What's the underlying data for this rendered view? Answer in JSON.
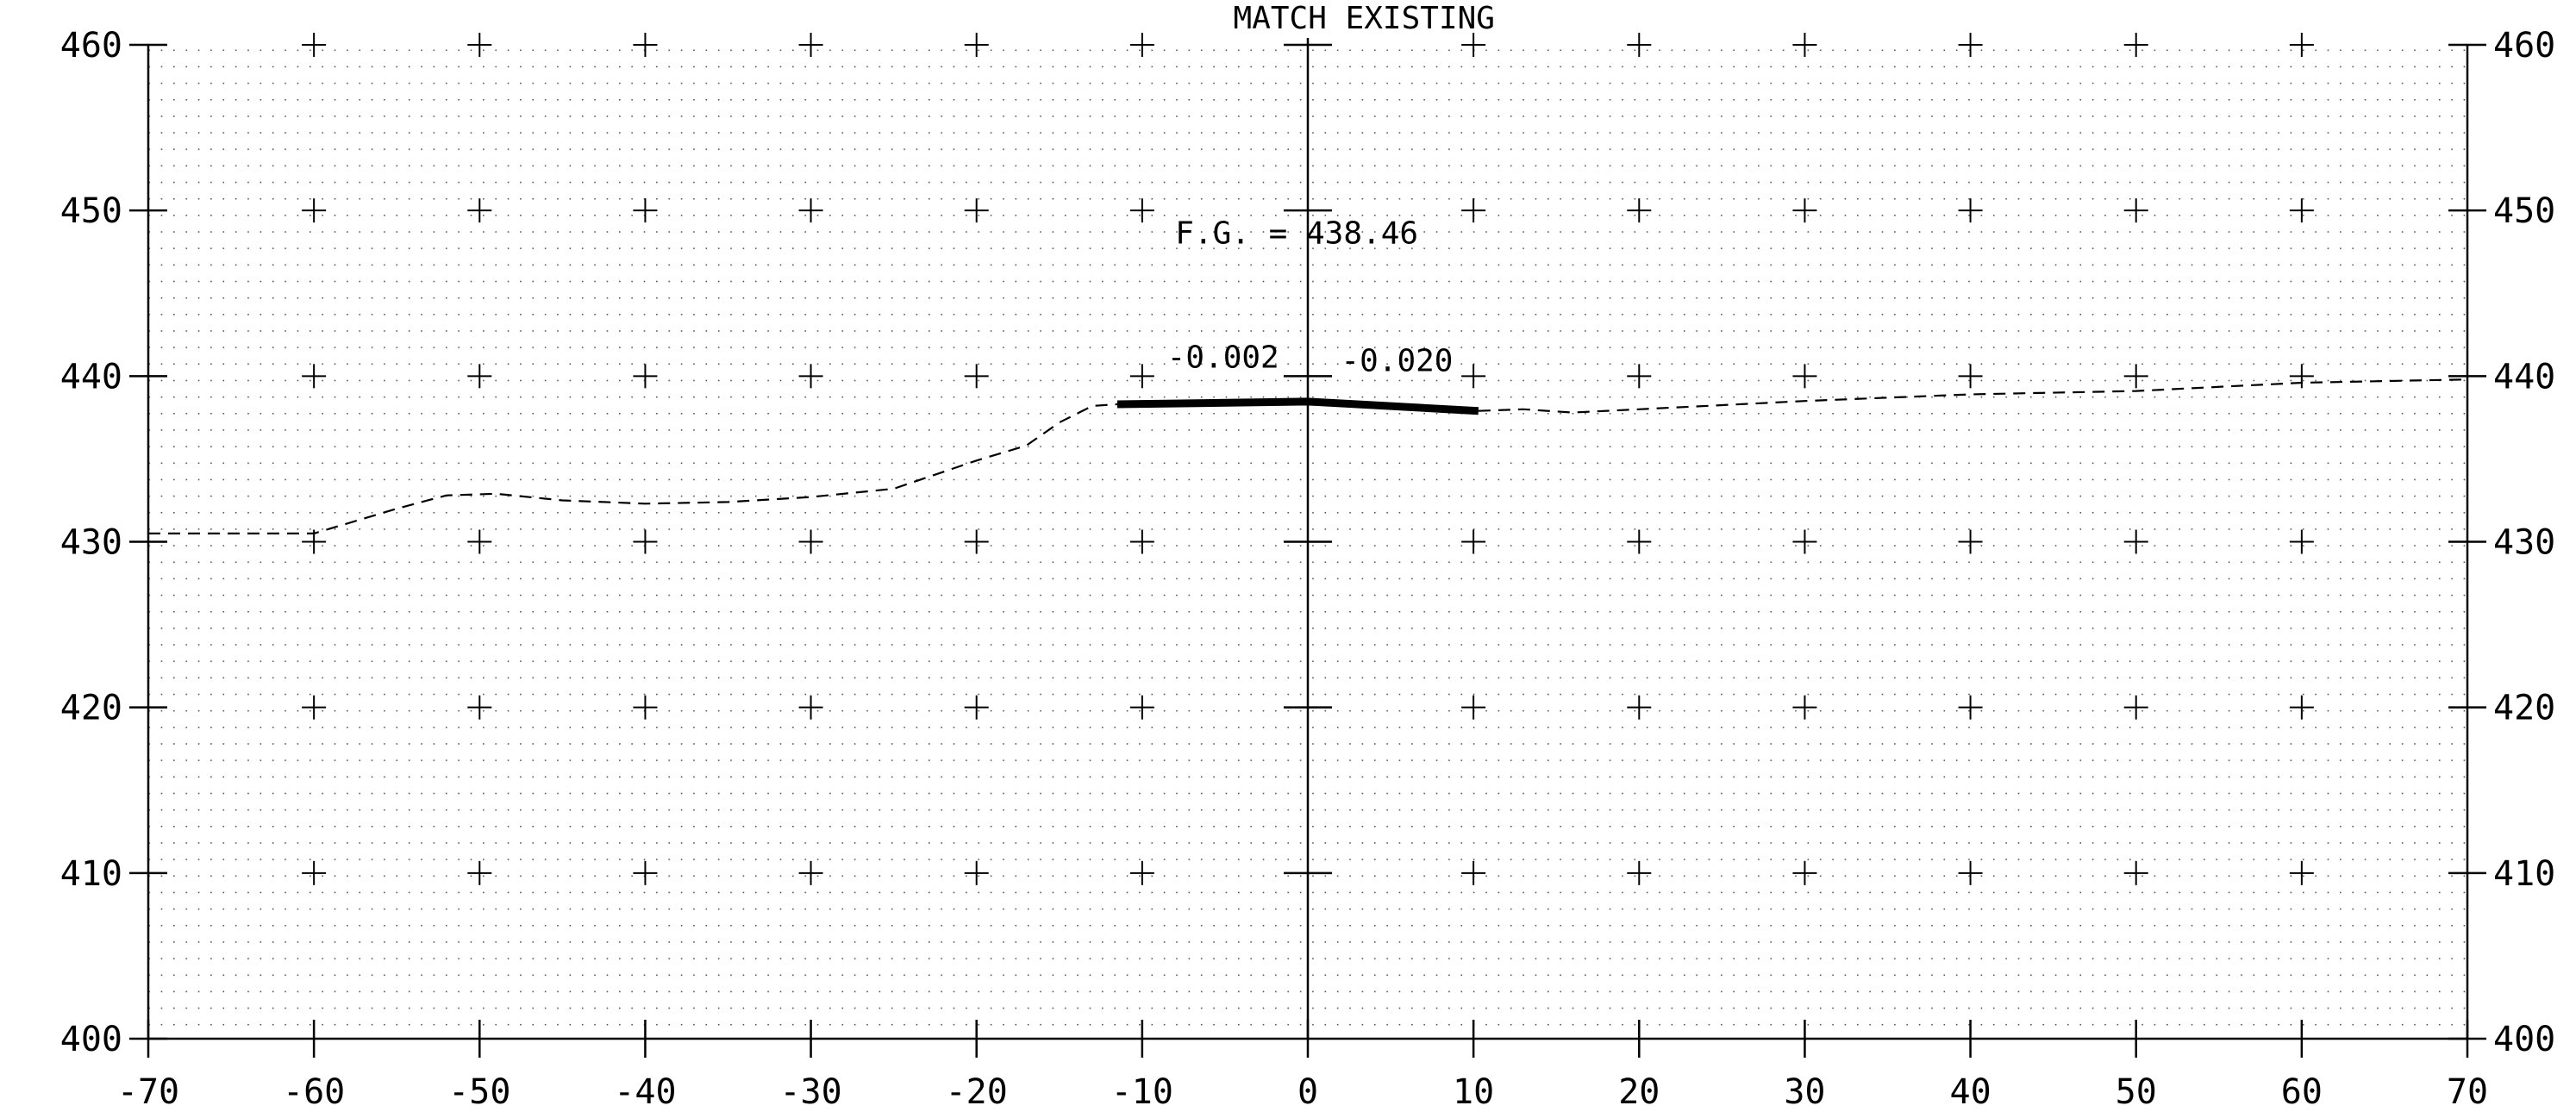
{
  "chart_data": {
    "type": "line",
    "title": "",
    "xlabel": "",
    "ylabel": "",
    "xlim": [
      -70,
      70
    ],
    "ylim": [
      400,
      460
    ],
    "x_ticks": [
      -70,
      -60,
      -50,
      -40,
      -30,
      -20,
      -10,
      0,
      10,
      20,
      30,
      40,
      50,
      60,
      70
    ],
    "x_tick_labels": [
      "-70",
      "-60",
      "-50",
      "-40",
      "-30",
      "-20",
      "-10",
      "0",
      "10",
      "20",
      "30",
      "40",
      "50",
      "60",
      "70"
    ],
    "y_ticks": [
      400,
      410,
      420,
      430,
      440,
      450,
      460
    ],
    "y_tick_labels": [
      "400",
      "410",
      "420",
      "430",
      "440",
      "450",
      "460"
    ],
    "grid": true,
    "series": [
      {
        "style": "dashed",
        "x": [
          -70,
          -60,
          -55,
          -52,
          -49,
          -45,
          -40,
          -35,
          -30,
          -25,
          -20,
          -17,
          -15,
          -13,
          -11.5
        ],
        "y": [
          430.5,
          430.5,
          432.0,
          432.8,
          432.9,
          432.5,
          432.3,
          432.4,
          432.7,
          433.2,
          434.9,
          435.8,
          437.2,
          438.2,
          438.3
        ]
      },
      {
        "style": "dashed",
        "x": [
          10.3,
          13,
          16,
          20,
          30,
          40,
          50,
          60,
          70
        ],
        "y": [
          437.9,
          438.0,
          437.8,
          438.0,
          438.5,
          438.9,
          439.1,
          439.6,
          439.8
        ]
      },
      {
        "style": "solid-heavy",
        "x": [
          -11.5,
          0,
          10.3
        ],
        "y": [
          438.3,
          438.46,
          437.9
        ]
      }
    ],
    "annotations": [
      {
        "text": "MATCH EXISTING",
        "x": -4.5,
        "y": 461
      },
      {
        "text": "F.G. = 438.46",
        "x": -8,
        "y": 448
      },
      {
        "text": "-0.002",
        "x": -8.5,
        "y": 440.5
      },
      {
        "text": "-0.020",
        "x": 2,
        "y": 440.3
      }
    ]
  }
}
